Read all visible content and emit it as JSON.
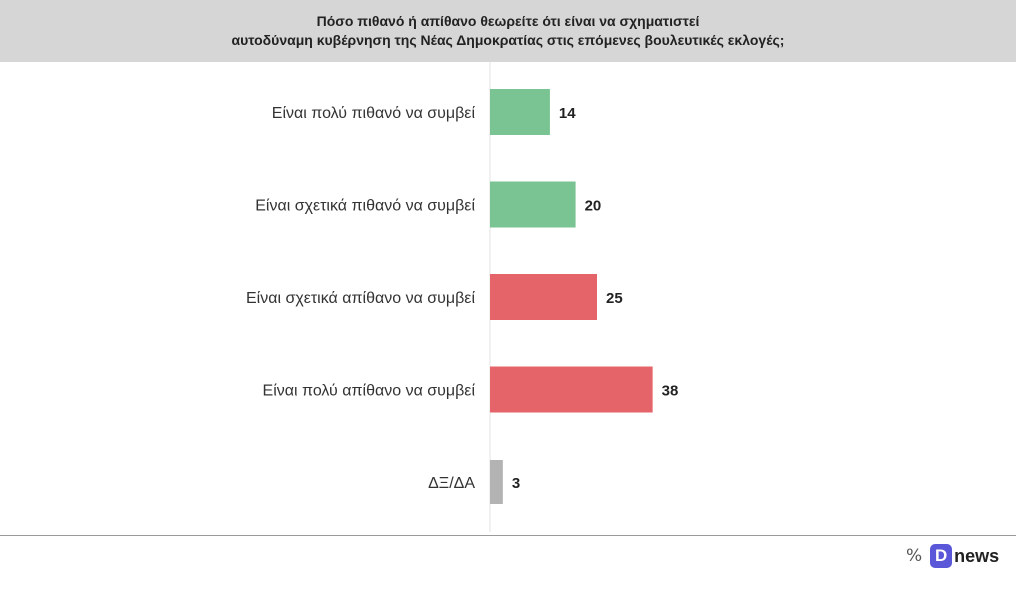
{
  "header": {
    "title_line1": "Πόσο πιθανό ή απίθανο θεωρείτε ότι είναι να σχηματιστεί",
    "title_line2": "αυτοδύναμη κυβέρνηση της Νέας Δημοκρατίας στις επόμενες βουλευτικές εκλογές;"
  },
  "chart_data": {
    "type": "bar",
    "orientation": "horizontal",
    "title": "Πόσο πιθανό ή απίθανο θεωρείτε ότι είναι να σχηματιστεί αυτοδύναμη κυβέρνηση της Νέας Δημοκρατίας στις επόμενες βουλευτικές εκλογές;",
    "categories": [
      "Είναι πολύ πιθανό να συμβεί",
      "Είναι σχετικά πιθανό να συμβεί",
      "Είναι σχετικά απίθανο να συμβεί",
      "Είναι πολύ απίθανο να συμβεί",
      "ΔΞ/ΔΑ"
    ],
    "values": [
      14,
      20,
      25,
      38,
      3
    ],
    "colors": [
      "#7ac393",
      "#7ac393",
      "#e5646a",
      "#e5646a",
      "#b3b3b3"
    ],
    "xlim": [
      0,
      100
    ],
    "grid": false,
    "legend": "none"
  },
  "footer": {
    "percent_symbol": "%",
    "logo_letter": "D",
    "logo_word": "news"
  }
}
